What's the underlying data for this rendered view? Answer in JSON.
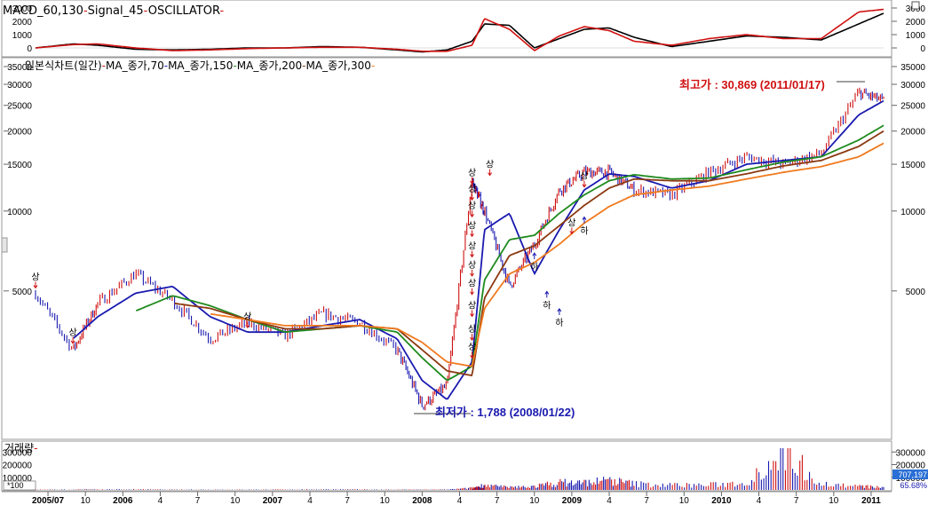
{
  "colors": {
    "macd": "#000000",
    "signal": "#d01010",
    "ma70": "#1a1ab0",
    "ma150": "#1e8a1e",
    "ma200": "#8b3a12",
    "ma300": "#f07a1e",
    "price_up": "#d01010",
    "price_down": "#1a1ab0",
    "high_label": "#d01010",
    "low_label": "#1a1ab0",
    "volume": "#1a1ab0",
    "volume_value_bg": "#2a6fd6",
    "ratio_text": "#1a1ab0"
  },
  "macd_panel": {
    "legend_macd": "MACD_60,130",
    "legend_signal": "Signal_45",
    "legend_osc": "OSCILLATOR",
    "sep": "-",
    "ticks": [
      "3000",
      "2000",
      "1000",
      "0"
    ],
    "ylim": [
      -400,
      3200
    ]
  },
  "price_panel": {
    "legend_title": "일본식차트(일간)",
    "legend_ma": [
      "MA_종가,70",
      "MA_종가,150",
      "MA_종가,200",
      "MA_종가,300"
    ],
    "sep": "-",
    "ticks": [
      "35000",
      "30000",
      "25000",
      "20000",
      "15000",
      "10000",
      "5000"
    ],
    "high_label": "최고가 : 30,869 (2011/01/17)",
    "low_label": "최저가 : 1,788 (2008/01/22)",
    "up_marker": "상",
    "down_marker": "하"
  },
  "volume_panel": {
    "legend": "거래량",
    "ticks": [
      "300000",
      "200000",
      "100000"
    ],
    "scale_label": "*100",
    "current_value": "707,197",
    "ratio": "65.68%"
  },
  "x_axis": {
    "labels": [
      "2005/07",
      "10",
      "2006",
      "4",
      "7",
      "10",
      "2007",
      "4",
      "7",
      "10",
      "2008",
      "4",
      "7",
      "10",
      "2009",
      "4",
      "7",
      "10",
      "2010",
      "4",
      "7",
      "10",
      "2011"
    ]
  },
  "chart_data": {
    "type": "line",
    "log_scale": true,
    "x": [
      "2005-06",
      "2005-09",
      "2005-11",
      "2006-02",
      "2006-05",
      "2006-08",
      "2006-11",
      "2007-02",
      "2007-05",
      "2007-08",
      "2007-11",
      "2008-01",
      "2008-03",
      "2008-05",
      "2008-06",
      "2008-08",
      "2008-10",
      "2008-12",
      "2009-02",
      "2009-04",
      "2009-06",
      "2009-09",
      "2009-12",
      "2010-03",
      "2010-06",
      "2010-09",
      "2010-12",
      "2011-02"
    ],
    "series": [
      {
        "name": "일본식차트(일간)",
        "values": [
          4900,
          3000,
          4500,
          5800,
          4600,
          3300,
          3800,
          3400,
          4100,
          3800,
          3000,
          1850,
          2200,
          13000,
          10000,
          5200,
          7500,
          12000,
          14000,
          14000,
          12000,
          11500,
          14000,
          16000,
          15000,
          16500,
          28000,
          26000
        ]
      },
      {
        "name": "MA_종가,70",
        "values": [
          null,
          3300,
          4000,
          4900,
          5200,
          4000,
          3500,
          3500,
          3700,
          3900,
          3300,
          2300,
          1950,
          2700,
          8500,
          9800,
          5800,
          8500,
          12000,
          13800,
          13500,
          12200,
          13000,
          15000,
          15500,
          16000,
          23000,
          26000
        ]
      },
      {
        "name": "MA_종가,150",
        "values": [
          null,
          null,
          null,
          4200,
          4800,
          4400,
          3900,
          3500,
          3600,
          3700,
          3500,
          2800,
          2300,
          2600,
          5500,
          7800,
          8100,
          9800,
          11500,
          13000,
          13700,
          13200,
          13300,
          14300,
          15300,
          16000,
          18500,
          21000
        ]
      },
      {
        "name": "MA_종가,200",
        "values": [
          null,
          null,
          null,
          null,
          4500,
          4300,
          3900,
          3600,
          3600,
          3700,
          3600,
          3000,
          2500,
          2400,
          4700,
          6800,
          7400,
          8800,
          10500,
          12200,
          13200,
          13000,
          13000,
          13800,
          14800,
          15500,
          17500,
          20000
        ]
      },
      {
        "name": "MA_종가,300",
        "values": [
          null,
          null,
          null,
          null,
          null,
          4100,
          3900,
          3700,
          3700,
          3700,
          3600,
          3200,
          2700,
          2600,
          4300,
          5800,
          6400,
          7500,
          9000,
          10400,
          11500,
          12000,
          12400,
          13200,
          14000,
          14700,
          16000,
          18000
        ]
      },
      {
        "name": "MACD_60,130",
        "values": [
          0,
          300,
          200,
          -100,
          -150,
          -100,
          0,
          0,
          100,
          50,
          -150,
          -300,
          -150,
          500,
          1800,
          1700,
          0,
          700,
          1400,
          1500,
          800,
          100,
          500,
          900,
          800,
          600,
          1800,
          2600
        ]
      },
      {
        "name": "Signal_45",
        "values": [
          0,
          250,
          300,
          0,
          -200,
          -150,
          -50,
          0,
          50,
          50,
          -100,
          -250,
          -250,
          200,
          2200,
          1400,
          -200,
          900,
          1600,
          1300,
          500,
          200,
          700,
          1000,
          700,
          700,
          2700,
          2900
        ]
      },
      {
        "name": "거래량",
        "values": [
          3000,
          3000,
          4000,
          5000,
          3000,
          3000,
          3000,
          4000,
          5000,
          4000,
          3000,
          2500,
          3000,
          15000,
          40000,
          20000,
          30000,
          60000,
          60000,
          80000,
          50000,
          40000,
          40000,
          60000,
          330000,
          50000,
          30000,
          20000
        ]
      }
    ],
    "annotations": [
      {
        "text": "최고가 : 30,869 (2011/01/17)",
        "x": "2011-01-17",
        "y": 30869
      },
      {
        "text": "최저가 : 1,788 (2008/01/22)",
        "x": "2008-01-22",
        "y": 1788
      }
    ]
  }
}
